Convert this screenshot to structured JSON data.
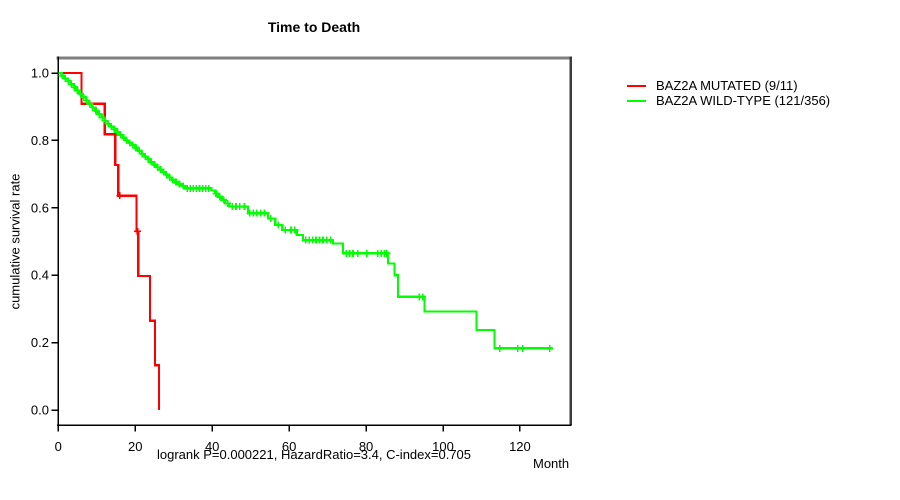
{
  "chart_data": {
    "type": "line",
    "subtype": "kaplan-meier-step",
    "title": "Time to Death",
    "xlabel": "Month",
    "ylabel": "cumulative survival rate",
    "caption": "logrank P=0.000221, HazardRatio=3.4, C-index=0.705",
    "xlim": [
      0,
      133
    ],
    "ylim": [
      0.0,
      1.0
    ],
    "xticks": [
      "0",
      "20",
      "40",
      "60",
      "80",
      "100",
      "120"
    ],
    "yticks": [
      "0.0",
      "0.2",
      "0.4",
      "0.6",
      "0.8",
      "1.0"
    ],
    "grid": false,
    "legend_position": "right-outside",
    "series": [
      {
        "name": "BAZ2A MUTATED (9/11)",
        "color": "#ff0000",
        "steps": [
          [
            0,
            1.0
          ],
          [
            6.0,
            0.909
          ],
          [
            12.1,
            0.818
          ],
          [
            14.8,
            0.727
          ],
          [
            15.6,
            0.636
          ],
          [
            20.3,
            0.53
          ],
          [
            20.8,
            0.398
          ],
          [
            23.8,
            0.265
          ],
          [
            25.1,
            0.133
          ],
          [
            26.2,
            0.0
          ]
        ],
        "censor_times": [
          16.0,
          20.6
        ],
        "tail_end": 26.2
      },
      {
        "name": "BAZ2A WILD-TYPE (121/356)",
        "color": "#00ff00",
        "steps": [
          [
            0,
            1.0
          ],
          [
            0.8,
            0.992
          ],
          [
            1.6,
            0.984
          ],
          [
            2.4,
            0.976
          ],
          [
            3.2,
            0.967
          ],
          [
            4.0,
            0.958
          ],
          [
            4.8,
            0.948
          ],
          [
            5.6,
            0.938
          ],
          [
            6.4,
            0.928
          ],
          [
            7.2,
            0.918
          ],
          [
            8.0,
            0.908
          ],
          [
            8.8,
            0.898
          ],
          [
            9.6,
            0.888
          ],
          [
            10.4,
            0.878
          ],
          [
            11.2,
            0.868
          ],
          [
            12.0,
            0.858
          ],
          [
            12.8,
            0.849
          ],
          [
            13.6,
            0.841
          ],
          [
            14.4,
            0.833
          ],
          [
            15.2,
            0.824
          ],
          [
            16.0,
            0.816
          ],
          [
            16.8,
            0.808
          ],
          [
            17.6,
            0.8
          ],
          [
            18.4,
            0.793
          ],
          [
            19.2,
            0.786
          ],
          [
            20.0,
            0.778
          ],
          [
            20.8,
            0.769
          ],
          [
            21.6,
            0.76
          ],
          [
            22.4,
            0.752
          ],
          [
            23.2,
            0.744
          ],
          [
            24.0,
            0.736
          ],
          [
            24.8,
            0.728
          ],
          [
            25.6,
            0.72
          ],
          [
            26.4,
            0.713
          ],
          [
            27.2,
            0.706
          ],
          [
            28.0,
            0.698
          ],
          [
            28.8,
            0.69
          ],
          [
            29.6,
            0.683
          ],
          [
            30.4,
            0.676
          ],
          [
            31.2,
            0.67
          ],
          [
            32.2,
            0.665
          ],
          [
            33.0,
            0.658
          ],
          [
            39.8,
            0.651
          ],
          [
            40.8,
            0.642
          ],
          [
            41.6,
            0.633
          ],
          [
            42.5,
            0.623
          ],
          [
            43.3,
            0.613
          ],
          [
            44.5,
            0.604
          ],
          [
            49.3,
            0.584
          ],
          [
            54.5,
            0.568
          ],
          [
            56.4,
            0.549
          ],
          [
            58.2,
            0.534
          ],
          [
            62.0,
            0.519
          ],
          [
            63.6,
            0.504
          ],
          [
            71.4,
            0.494
          ],
          [
            74.0,
            0.465
          ],
          [
            85.7,
            0.435
          ],
          [
            87.4,
            0.4
          ],
          [
            88.3,
            0.336
          ],
          [
            95.2,
            0.292
          ],
          [
            108.7,
            0.237
          ],
          [
            113.4,
            0.183
          ]
        ],
        "censor_times": [
          1.0,
          1.8,
          2.6,
          3.4,
          4.2,
          5.0,
          5.8,
          6.6,
          7.4,
          8.2,
          9.0,
          9.8,
          10.6,
          11.4,
          12.2,
          13.0,
          13.8,
          14.6,
          15.4,
          16.2,
          17.0,
          17.8,
          18.6,
          19.4,
          20.2,
          21.0,
          21.8,
          22.6,
          23.4,
          24.2,
          25.0,
          25.8,
          26.6,
          27.4,
          28.2,
          29.0,
          29.8,
          30.6,
          31.5,
          32.5,
          33.5,
          34.3,
          35.1,
          35.9,
          36.7,
          37.5,
          38.3,
          39.1,
          41.0,
          42.0,
          43.0,
          44.0,
          45.2,
          46.2,
          47.2,
          48.4,
          49.8,
          50.7,
          51.6,
          52.6,
          53.6,
          55.2,
          57.2,
          59.0,
          60.5,
          61.5,
          64.3,
          65.2,
          66.1,
          67.0,
          67.9,
          68.8,
          69.8,
          70.8,
          74.8,
          75.7,
          76.6,
          77.8,
          80.2,
          83.0,
          83.9,
          84.8,
          85.4,
          93.8,
          94.7,
          114.7,
          119.4,
          120.7,
          127.7
        ],
        "tail_end": 128.5
      }
    ]
  }
}
